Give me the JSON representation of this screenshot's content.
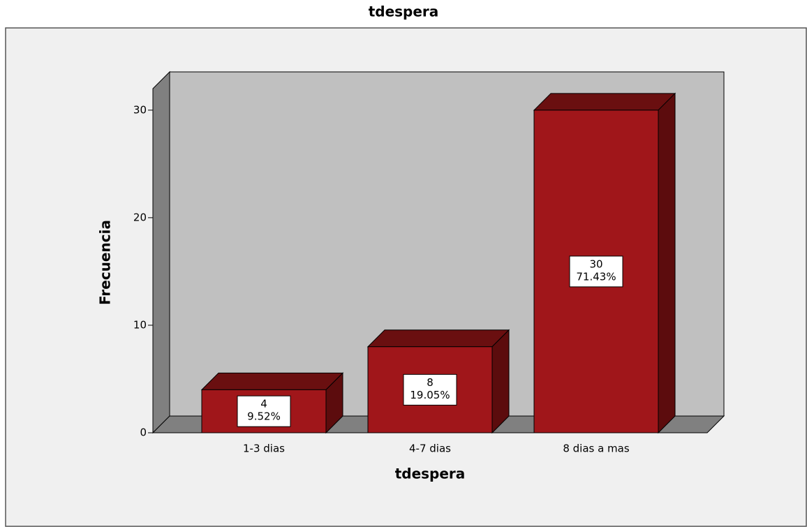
{
  "chart_data": {
    "type": "bar3d",
    "title": "tdespera",
    "x_label": "tdespera",
    "y_label": "Frecuencia",
    "categories": [
      "1-3 dias",
      "4-7 dias",
      "8 dias a mas"
    ],
    "values": [
      4,
      8,
      30
    ],
    "percentages": [
      9.52,
      19.05,
      71.43
    ],
    "percentage_labels": [
      "9.52%",
      "19.05%",
      "71.43%"
    ],
    "color": "#a0161a",
    "ylim": [
      0,
      32
    ],
    "yticks": [
      0,
      10,
      20,
      30
    ]
  }
}
